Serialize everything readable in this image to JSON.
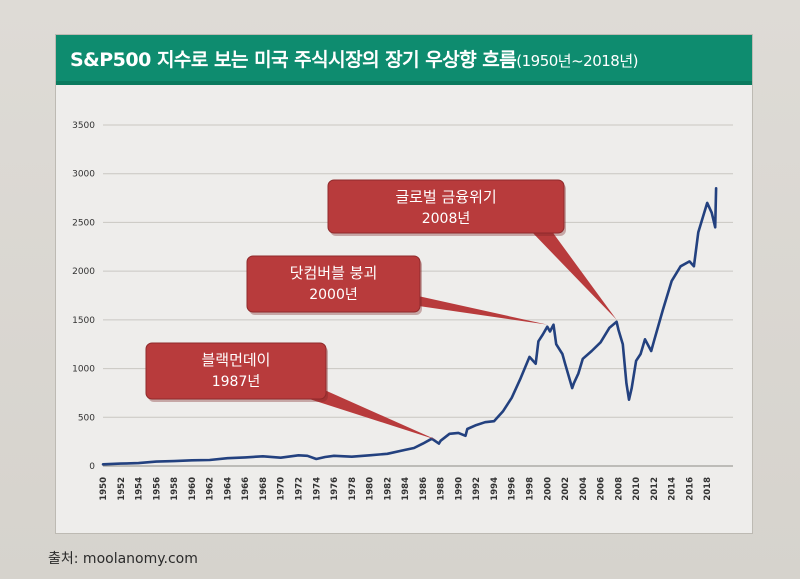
{
  "source": "출처: moolanomy.com",
  "chart_data": {
    "type": "line",
    "title": "S&P500 지수로 보는 미국 주식시장의 장기 우상향 흐름",
    "subtitle": "(1950년~2018년)",
    "xlabel": "",
    "ylabel": "",
    "xlim": [
      1950,
      2020
    ],
    "ylim": [
      0,
      3500
    ],
    "yticks": [
      0,
      500,
      1000,
      1500,
      2000,
      2500,
      3000,
      3500
    ],
    "xticks": [
      "1950",
      "1952",
      "1954",
      "1956",
      "1958",
      "1960",
      "1962",
      "1964",
      "1966",
      "1968",
      "1970",
      "1972",
      "1974",
      "1976",
      "1978",
      "1980",
      "1982",
      "1984",
      "1986",
      "1988",
      "1990",
      "1992",
      "1994",
      "1996",
      "1998",
      "2000",
      "2002",
      "2004",
      "2006",
      "2008",
      "2010",
      "2012",
      "2014",
      "2016",
      "2018"
    ],
    "grid": true,
    "line_color": "#23417f",
    "series": [
      {
        "x": [
          1950,
          1952,
          1954,
          1956,
          1958,
          1960,
          1962,
          1964,
          1966,
          1968,
          1970,
          1972,
          1973,
          1974,
          1975,
          1976,
          1978,
          1980,
          1982,
          1984,
          1985,
          1986,
          1987,
          1987.8,
          1988,
          1989,
          1990,
          1990.8,
          1991,
          1992,
          1993,
          1994,
          1995,
          1996,
          1997,
          1998,
          1998.7,
          1999,
          1999.5,
          2000,
          2000.3,
          2000.7,
          2001,
          2001.7,
          2002,
          2002.8,
          2003,
          2003.5,
          2004,
          2005,
          2006,
          2007,
          2007.8,
          2008,
          2008.5,
          2008.9,
          2009.2,
          2009.5,
          2010,
          2010.5,
          2011,
          2011.7,
          2012,
          2013,
          2014,
          2015,
          2016,
          2016.5,
          2017,
          2018,
          2018.5,
          2018.9,
          2019
        ],
        "y": [
          17,
          25,
          30,
          45,
          50,
          58,
          62,
          80,
          88,
          100,
          85,
          110,
          105,
          72,
          92,
          105,
          95,
          110,
          125,
          165,
          185,
          230,
          280,
          230,
          260,
          330,
          340,
          310,
          380,
          420,
          450,
          460,
          560,
          700,
          900,
          1120,
          1050,
          1280,
          1350,
          1430,
          1380,
          1450,
          1250,
          1150,
          1050,
          800,
          850,
          950,
          1100,
          1180,
          1270,
          1420,
          1480,
          1400,
          1250,
          850,
          680,
          800,
          1080,
          1150,
          1300,
          1180,
          1280,
          1600,
          1900,
          2050,
          2100,
          2050,
          2400,
          2700,
          2600,
          2450,
          2850
        ]
      }
    ],
    "annotations": [
      {
        "label": "블랙먼데이",
        "year_label": "1987년",
        "x": 1987.5
      },
      {
        "label": "닷컴버블 붕괴",
        "year_label": "2000년",
        "x": 2000
      },
      {
        "label": "글로벌 금융위기",
        "year_label": "2008년",
        "x": 2007.8
      }
    ]
  }
}
